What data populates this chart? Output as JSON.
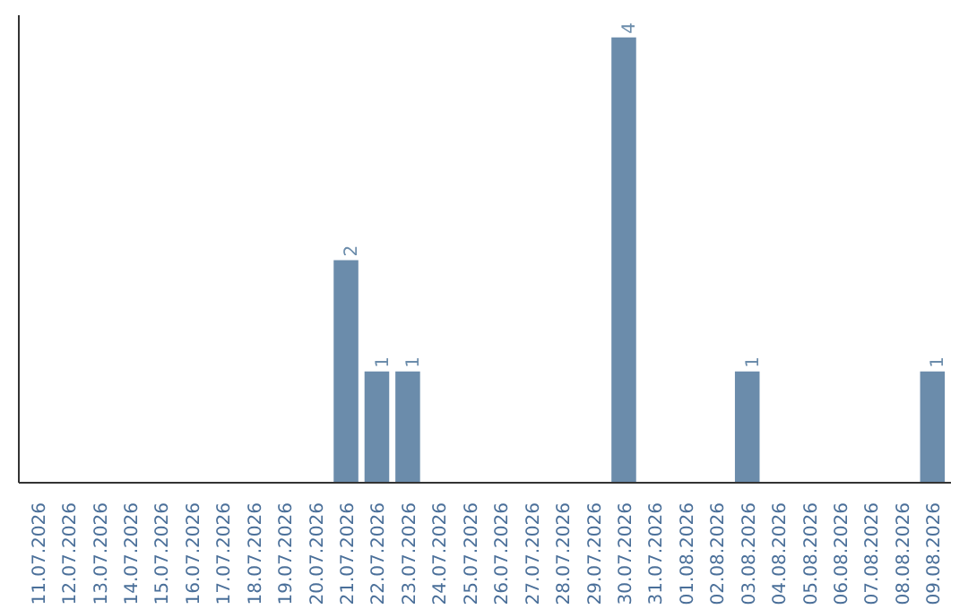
{
  "chart_data": {
    "type": "bar",
    "categories": [
      "11.07.2026",
      "12.07.2026",
      "13.07.2026",
      "14.07.2026",
      "15.07.2026",
      "16.07.2026",
      "17.07.2026",
      "18.07.2026",
      "19.07.2026",
      "20.07.2026",
      "21.07.2026",
      "22.07.2026",
      "23.07.2026",
      "24.07.2026",
      "25.07.2026",
      "26.07.2026",
      "27.07.2026",
      "28.07.2026",
      "29.07.2026",
      "30.07.2026",
      "31.07.2026",
      "01.08.2026",
      "02.08.2026",
      "03.08.2026",
      "04.08.2026",
      "05.08.2026",
      "06.08.2026",
      "07.08.2026",
      "08.08.2026",
      "09.08.2026"
    ],
    "values": [
      0,
      0,
      0,
      0,
      0,
      0,
      0,
      0,
      0,
      0,
      2,
      1,
      1,
      0,
      0,
      0,
      0,
      0,
      0,
      4,
      0,
      0,
      0,
      1,
      0,
      0,
      0,
      0,
      0,
      1
    ],
    "value_labels": [
      null,
      null,
      null,
      null,
      null,
      null,
      null,
      null,
      null,
      null,
      "2",
      "1",
      "1",
      null,
      null,
      null,
      null,
      null,
      null,
      "4",
      null,
      null,
      null,
      "1",
      null,
      null,
      null,
      null,
      null,
      "1"
    ],
    "color": "#6b8cab",
    "ylim": [
      0,
      4.2
    ],
    "tick_labels": "x"
  }
}
